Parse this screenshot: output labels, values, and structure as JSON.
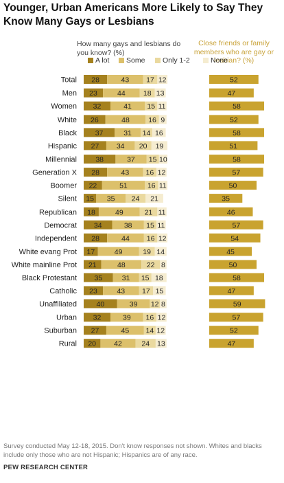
{
  "title": "Younger, Urban Americans More Likely to Say They\nKnow Many Gays or Lesbians",
  "question": "How many gays and lesbians do you know? (%)",
  "right_header": "Close friends or family members who are gay or lesbian? (%)",
  "legend": [
    "A lot",
    "Some",
    "Only 1-2",
    "None"
  ],
  "colors": {
    "a_lot": "#a5811e",
    "some": "#dcc06b",
    "only_1_2": "#ead99f",
    "none": "#f5ecd0",
    "close": "#c9a32f"
  },
  "note": "Survey conducted May 12-18, 2015. Don't know responses not shown. Whites and blacks include only those who are not Hispanic; Hispanics are of any race.",
  "source": "PEW RESEARCH CENTER",
  "chart_data": {
    "type": "bar",
    "stacked": true,
    "categories": [
      "Total",
      "Men",
      "Women",
      "White",
      "Black",
      "Hispanic",
      "Millennial",
      "Generation X",
      "Boomer",
      "Silent",
      "Republican",
      "Democrat",
      "Independent",
      "White evang Prot",
      "White mainline Prot",
      "Black Protestant",
      "Catholic",
      "Unaffiliated",
      "Urban",
      "Suburban",
      "Rural"
    ],
    "groups": [
      [
        0
      ],
      [
        1,
        2
      ],
      [
        3,
        4,
        5
      ],
      [
        6,
        7,
        8,
        9
      ],
      [
        10,
        11,
        12
      ],
      [
        13,
        14,
        15,
        16,
        17
      ],
      [
        18,
        19,
        20
      ]
    ],
    "series": [
      {
        "name": "A lot",
        "values": [
          28,
          23,
          32,
          26,
          37,
          27,
          38,
          28,
          22,
          15,
          18,
          34,
          28,
          17,
          21,
          35,
          23,
          40,
          32,
          27,
          20
        ]
      },
      {
        "name": "Some",
        "values": [
          43,
          44,
          41,
          48,
          31,
          34,
          37,
          43,
          51,
          35,
          49,
          38,
          44,
          49,
          48,
          31,
          43,
          39,
          39,
          45,
          42
        ]
      },
      {
        "name": "Only 1-2",
        "values": [
          17,
          18,
          15,
          16,
          14,
          20,
          15,
          16,
          16,
          24,
          21,
          15,
          16,
          19,
          22,
          15,
          17,
          12,
          16,
          14,
          24
        ]
      },
      {
        "name": "None",
        "values": [
          12,
          13,
          11,
          9,
          16,
          19,
          10,
          12,
          11,
          21,
          11,
          11,
          12,
          14,
          8,
          18,
          15,
          8,
          12,
          12,
          13
        ]
      }
    ],
    "close_friends_family": [
      52,
      47,
      58,
      52,
      58,
      51,
      58,
      57,
      50,
      35,
      46,
      57,
      54,
      45,
      50,
      58,
      47,
      59,
      57,
      52,
      47
    ]
  }
}
